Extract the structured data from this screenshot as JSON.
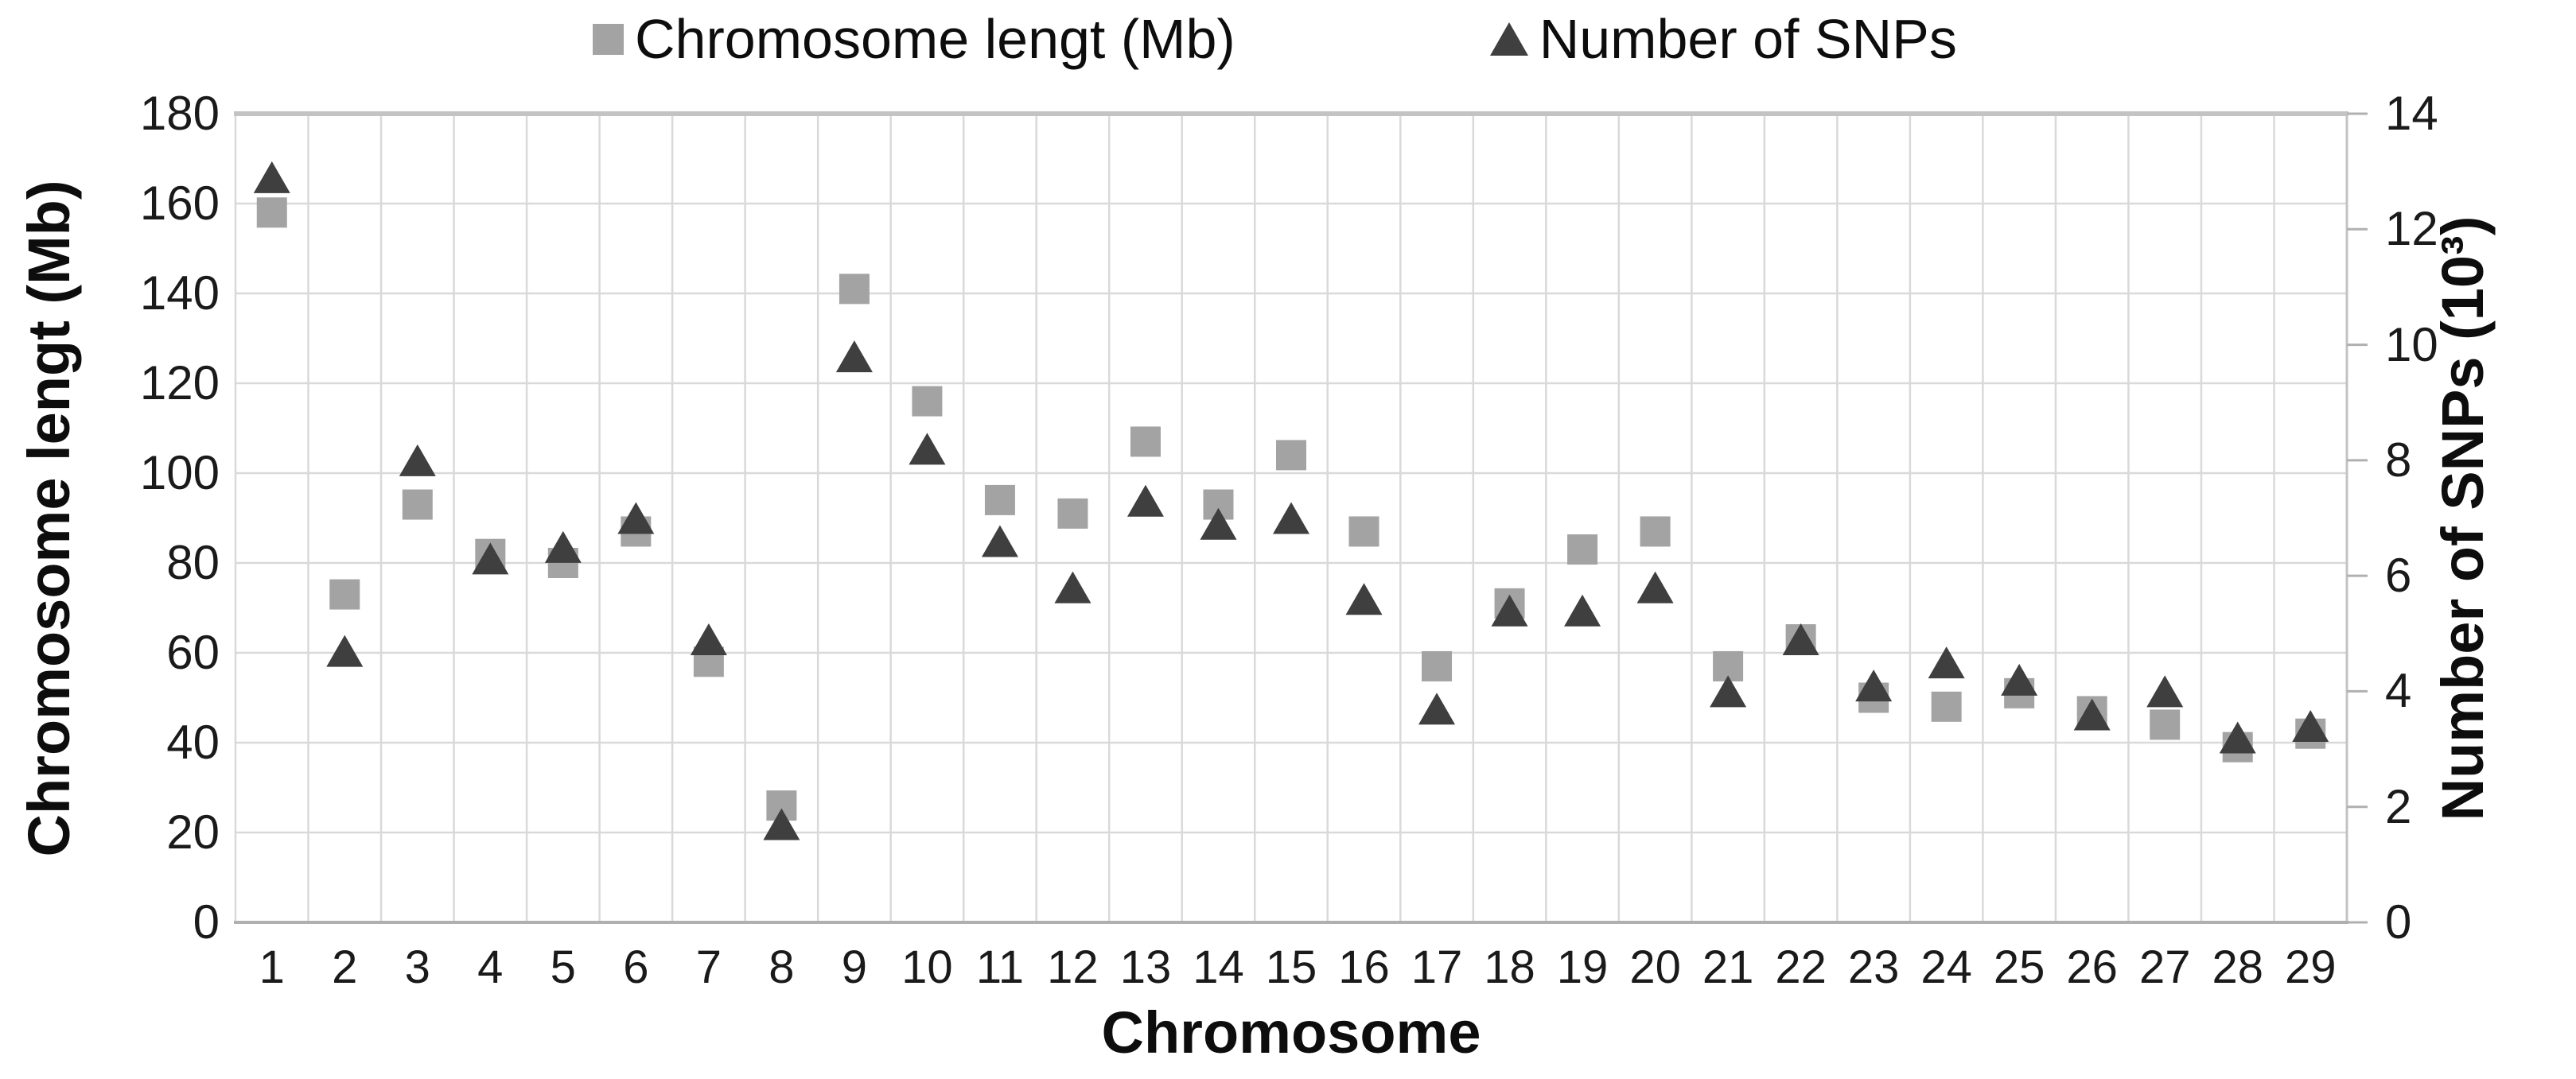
{
  "chart_data": {
    "type": "scatter",
    "title": "",
    "xlabel": "Chromosome",
    "grid": true,
    "legend_position": "top",
    "categories": [
      1,
      2,
      3,
      4,
      5,
      6,
      7,
      8,
      9,
      10,
      11,
      12,
      13,
      14,
      15,
      16,
      17,
      18,
      19,
      20,
      21,
      22,
      23,
      24,
      25,
      26,
      27,
      28,
      29
    ],
    "left_axis": {
      "label": "Chromosome lengt (Mb)",
      "min": 0,
      "max": 180,
      "ticks": [
        0,
        20,
        40,
        60,
        80,
        100,
        120,
        140,
        160,
        180
      ]
    },
    "right_axis": {
      "label": "Number of SNPs (10³)",
      "min": 0,
      "max": 14,
      "ticks": [
        0,
        2,
        4,
        6,
        8,
        10,
        12,
        14
      ]
    },
    "series": [
      {
        "name": "Chromosome lengt (Mb)",
        "marker": "square",
        "color": "#a3a3a3",
        "axis": "left",
        "values": [
          158,
          73,
          93,
          82,
          80,
          87,
          58,
          26,
          141,
          116,
          94,
          91,
          107,
          93,
          104,
          87,
          57,
          71,
          83,
          87,
          57,
          63,
          50,
          48,
          51,
          47,
          44,
          39,
          42
        ]
      },
      {
        "name": "Number of SNPs",
        "marker": "triangle",
        "color": "#3f3f3f",
        "axis": "right",
        "values": [
          12.9,
          4.7,
          8.0,
          6.3,
          6.5,
          7.0,
          4.9,
          1.7,
          9.8,
          8.2,
          6.6,
          5.8,
          7.3,
          6.9,
          7.0,
          5.6,
          3.7,
          5.4,
          5.4,
          5.8,
          4.0,
          4.9,
          4.1,
          4.5,
          4.2,
          3.6,
          4.0,
          3.2,
          3.4
        ]
      }
    ],
    "style": {
      "gridline_color": "#d9d9d9",
      "plot_border_color": "#c3c3c3",
      "axis_line_color": "#b0b0b0",
      "text_color": "#111111"
    }
  }
}
